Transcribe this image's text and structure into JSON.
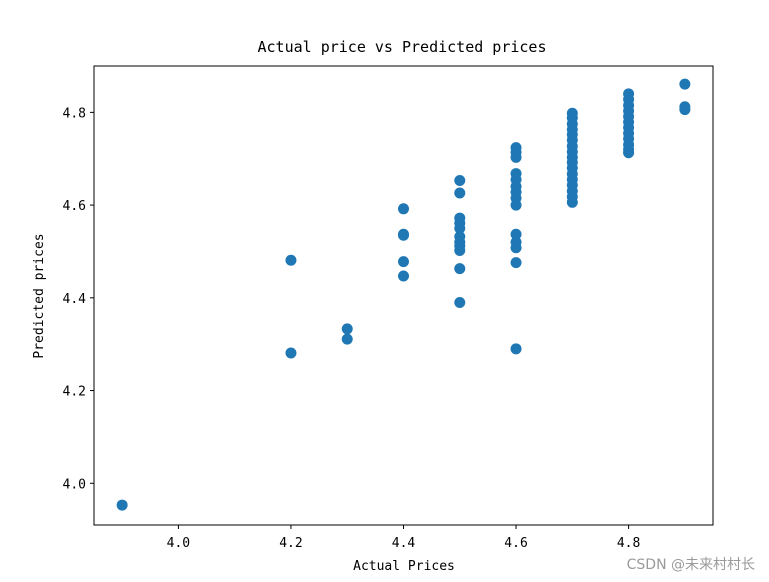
{
  "chart_data": {
    "type": "scatter",
    "title": "Actual price vs Predicted prices",
    "xlabel": "Actual Prices",
    "ylabel": "Predicted prices",
    "xlim": [
      3.85,
      4.95
    ],
    "ylim": [
      3.91,
      4.9
    ],
    "xticks": [
      4.0,
      4.2,
      4.4,
      4.6,
      4.8
    ],
    "xtick_labels": [
      "4.0",
      "4.2",
      "4.4",
      "4.6",
      "4.8"
    ],
    "yticks": [
      4.0,
      4.2,
      4.4,
      4.6,
      4.8
    ],
    "ytick_labels": [
      "4.0",
      "4.2",
      "4.4",
      "4.6",
      "4.8"
    ],
    "marker_color": "#1f77b4",
    "points": [
      {
        "x": 3.9,
        "y": 3.953
      },
      {
        "x": 4.2,
        "y": 4.481
      },
      {
        "x": 4.2,
        "y": 4.281
      },
      {
        "x": 4.3,
        "y": 4.333
      },
      {
        "x": 4.3,
        "y": 4.311
      },
      {
        "x": 4.4,
        "y": 4.592
      },
      {
        "x": 4.4,
        "y": 4.537
      },
      {
        "x": 4.4,
        "y": 4.535
      },
      {
        "x": 4.4,
        "y": 4.478
      },
      {
        "x": 4.4,
        "y": 4.447
      },
      {
        "x": 4.5,
        "y": 4.653
      },
      {
        "x": 4.5,
        "y": 4.626
      },
      {
        "x": 4.5,
        "y": 4.572
      },
      {
        "x": 4.5,
        "y": 4.561
      },
      {
        "x": 4.5,
        "y": 4.55
      },
      {
        "x": 4.5,
        "y": 4.532
      },
      {
        "x": 4.5,
        "y": 4.52
      },
      {
        "x": 4.5,
        "y": 4.512
      },
      {
        "x": 4.5,
        "y": 4.502
      },
      {
        "x": 4.5,
        "y": 4.463
      },
      {
        "x": 4.5,
        "y": 4.39
      },
      {
        "x": 4.6,
        "y": 4.724
      },
      {
        "x": 4.6,
        "y": 4.714
      },
      {
        "x": 4.6,
        "y": 4.703
      },
      {
        "x": 4.6,
        "y": 4.668
      },
      {
        "x": 4.6,
        "y": 4.655
      },
      {
        "x": 4.6,
        "y": 4.64
      },
      {
        "x": 4.6,
        "y": 4.628
      },
      {
        "x": 4.6,
        "y": 4.615
      },
      {
        "x": 4.6,
        "y": 4.6
      },
      {
        "x": 4.6,
        "y": 4.537
      },
      {
        "x": 4.6,
        "y": 4.52
      },
      {
        "x": 4.6,
        "y": 4.508
      },
      {
        "x": 4.6,
        "y": 4.476
      },
      {
        "x": 4.6,
        "y": 4.29
      },
      {
        "x": 4.7,
        "y": 4.798
      },
      {
        "x": 4.7,
        "y": 4.788
      },
      {
        "x": 4.7,
        "y": 4.775
      },
      {
        "x": 4.7,
        "y": 4.763
      },
      {
        "x": 4.7,
        "y": 4.752
      },
      {
        "x": 4.7,
        "y": 4.74
      },
      {
        "x": 4.7,
        "y": 4.727
      },
      {
        "x": 4.7,
        "y": 4.715
      },
      {
        "x": 4.7,
        "y": 4.703
      },
      {
        "x": 4.7,
        "y": 4.692
      },
      {
        "x": 4.7,
        "y": 4.68
      },
      {
        "x": 4.7,
        "y": 4.667
      },
      {
        "x": 4.7,
        "y": 4.655
      },
      {
        "x": 4.7,
        "y": 4.643
      },
      {
        "x": 4.7,
        "y": 4.63
      },
      {
        "x": 4.7,
        "y": 4.618
      },
      {
        "x": 4.7,
        "y": 4.606
      },
      {
        "x": 4.8,
        "y": 4.84
      },
      {
        "x": 4.8,
        "y": 4.828
      },
      {
        "x": 4.8,
        "y": 4.815
      },
      {
        "x": 4.8,
        "y": 4.803
      },
      {
        "x": 4.8,
        "y": 4.791
      },
      {
        "x": 4.8,
        "y": 4.779
      },
      {
        "x": 4.8,
        "y": 4.767
      },
      {
        "x": 4.8,
        "y": 4.755
      },
      {
        "x": 4.8,
        "y": 4.743
      },
      {
        "x": 4.8,
        "y": 4.73
      },
      {
        "x": 4.8,
        "y": 4.72
      },
      {
        "x": 4.8,
        "y": 4.713
      },
      {
        "x": 4.9,
        "y": 4.861
      },
      {
        "x": 4.9,
        "y": 4.812
      },
      {
        "x": 4.9,
        "y": 4.806
      }
    ]
  },
  "watermark": "CSDN @未来村村长"
}
